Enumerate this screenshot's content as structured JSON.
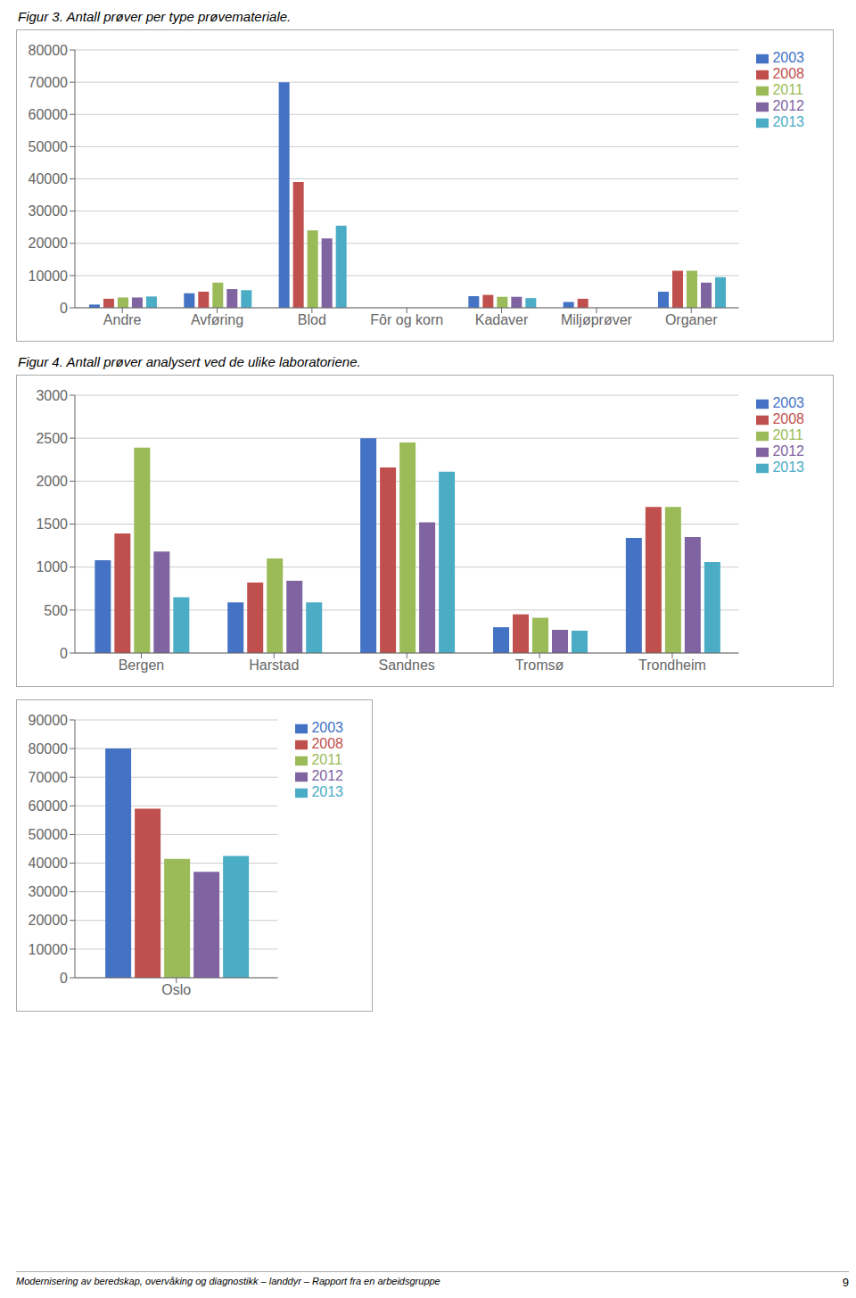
{
  "chart_data": [
    {
      "type": "bar",
      "title": "Figur 3. Antall prøver per type prøvemateriale.",
      "categories": [
        "Andre",
        "Avføring",
        "Blod",
        "Fôr og korn",
        "Kadaver",
        "Miljøprøver",
        "Organer"
      ],
      "series": [
        {
          "name": "2003",
          "color": "#4472c4",
          "values": [
            1000,
            4500,
            70000,
            0,
            3600,
            1800,
            5000
          ]
        },
        {
          "name": "2008",
          "color": "#c0504d",
          "values": [
            2800,
            5000,
            39000,
            0,
            4000,
            2800,
            11500
          ]
        },
        {
          "name": "2011",
          "color": "#9bbb59",
          "values": [
            3200,
            7800,
            24000,
            0,
            3400,
            0,
            11500
          ]
        },
        {
          "name": "2012",
          "color": "#8064a2",
          "values": [
            3200,
            5800,
            21500,
            0,
            3400,
            0,
            7800
          ]
        },
        {
          "name": "2013",
          "color": "#4bacc6",
          "values": [
            3500,
            5500,
            25500,
            0,
            3000,
            0,
            9500
          ]
        }
      ],
      "ylim": [
        0,
        80000
      ],
      "yticks": [
        0,
        10000,
        20000,
        30000,
        40000,
        50000,
        60000,
        70000,
        80000
      ],
      "grid": true,
      "legend": "right"
    },
    {
      "type": "bar",
      "title": "Figur 4. Antall prøver analysert ved de ulike laboratoriene.",
      "categories": [
        "Bergen",
        "Harstad",
        "Sandnes",
        "Tromsø",
        "Trondheim"
      ],
      "series": [
        {
          "name": "2003",
          "color": "#4472c4",
          "values": [
            1080,
            590,
            2500,
            300,
            1340
          ]
        },
        {
          "name": "2008",
          "color": "#c0504d",
          "values": [
            1390,
            820,
            2160,
            450,
            1700
          ]
        },
        {
          "name": "2011",
          "color": "#9bbb59",
          "values": [
            2390,
            1100,
            2450,
            410,
            1700
          ]
        },
        {
          "name": "2012",
          "color": "#8064a2",
          "values": [
            1180,
            840,
            1520,
            270,
            1350
          ]
        },
        {
          "name": "2013",
          "color": "#4bacc6",
          "values": [
            650,
            590,
            2110,
            260,
            1060
          ]
        }
      ],
      "ylim": [
        0,
        3000
      ],
      "yticks": [
        0,
        500,
        1000,
        1500,
        2000,
        2500,
        3000
      ],
      "grid": true,
      "legend": "right"
    },
    {
      "type": "bar",
      "categories": [
        "Oslo"
      ],
      "series": [
        {
          "name": "2003",
          "color": "#4472c4",
          "values": [
            80000
          ]
        },
        {
          "name": "2008",
          "color": "#c0504d",
          "values": [
            59000
          ]
        },
        {
          "name": "2011",
          "color": "#9bbb59",
          "values": [
            41500
          ]
        },
        {
          "name": "2012",
          "color": "#8064a2",
          "values": [
            37000
          ]
        },
        {
          "name": "2013",
          "color": "#4bacc6",
          "values": [
            42500
          ]
        }
      ],
      "ylim": [
        0,
        90000
      ],
      "yticks": [
        0,
        10000,
        20000,
        30000,
        40000,
        50000,
        60000,
        70000,
        80000,
        90000
      ],
      "grid": true,
      "legend": "right",
      "annotations": [
        "Modernisering av beredskap, overvåking og diagnostikk – landdyr – Rapport fra en arbeidsgruppe",
        "9"
      ]
    }
  ]
}
